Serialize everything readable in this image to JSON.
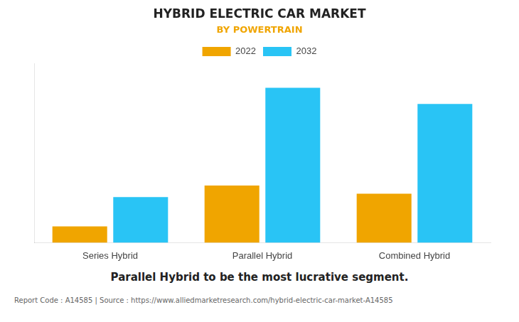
{
  "chart_data": {
    "type": "bar",
    "title": "HYBRID ELECTRIC CAR MARKET",
    "subtitle": "BY POWERTRAIN",
    "categories": [
      "Series Hybrid",
      "Parallel Hybrid",
      "Combined Hybrid"
    ],
    "series": [
      {
        "name": "2022",
        "color": "#F0A500",
        "values": [
          1.0,
          3.5,
          3.0
        ]
      },
      {
        "name": "2032",
        "color": "#29C4F5",
        "values": [
          2.8,
          9.5,
          8.5
        ]
      }
    ],
    "ylim": [
      0,
      11
    ],
    "grid": false,
    "legend": "top",
    "tick_labels": "x",
    "annotations": [
      "Parallel Hybrid to be the most lucrative segment.",
      "Report Code : A14585  |  Source : https://www.alliedmarketresearch.com/hybrid-electric-car-market-A14585"
    ]
  }
}
